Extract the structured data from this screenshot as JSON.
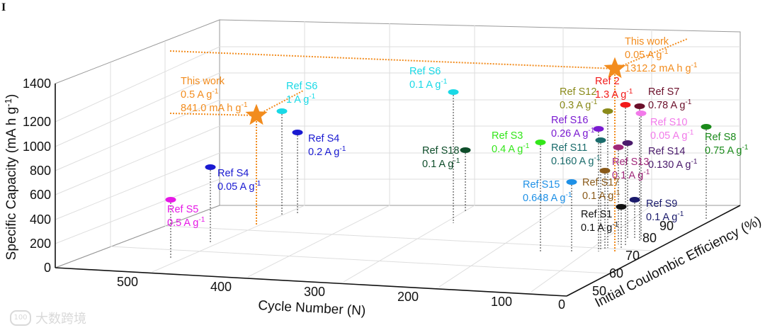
{
  "panel_label": "I",
  "watermark": {
    "logo": "100",
    "text": "大数跨境"
  },
  "chart_data": {
    "type": "scatter3d",
    "title": "",
    "xlabel": "Cycle Number (N)",
    "ylabel": "Initial Coulombic Efficiency (%)",
    "zlabel": "Specific Capacity (mA h g-1)",
    "xlim": [
      0,
      550
    ],
    "ylim": [
      50,
      90
    ],
    "zlim": [
      0,
      1400
    ],
    "x_ticks": [
      "500",
      "400",
      "300",
      "200",
      "100",
      "0"
    ],
    "y_ticks": [
      "50",
      "60",
      "70",
      "80",
      "90"
    ],
    "z_ticks": [
      "0",
      "200",
      "400",
      "600",
      "800",
      "1000",
      "1200",
      "1400"
    ],
    "grid": true,
    "points": [
      {
        "id": "this-work-0.5",
        "lines": [
          "This work",
          "0.5 A g-1",
          "841.0 mA h g-1"
        ],
        "color": "#F28C1E",
        "marker": "star"
      },
      {
        "id": "this-work-0.05",
        "lines": [
          "This work",
          "0.05 A g-1",
          "1312.2 mA h g-1"
        ],
        "color": "#F28C1E",
        "marker": "star"
      },
      {
        "id": "ref-s5",
        "lines": [
          "Ref S5",
          "0.5 A g-1"
        ],
        "color": "#E619E6",
        "marker": "ellipse"
      },
      {
        "id": "ref-s4-a",
        "lines": [
          "Ref S4",
          "0.05 A g-1"
        ],
        "color": "#1A1AD1",
        "marker": "ellipse"
      },
      {
        "id": "ref-s6-a",
        "lines": [
          "Ref S6",
          "1 A g-1"
        ],
        "color": "#19D9E6",
        "marker": "ellipse"
      },
      {
        "id": "ref-s4-b",
        "lines": [
          "Ref S4",
          "0.2 A g-1"
        ],
        "color": "#1A1AD1",
        "marker": "ellipse"
      },
      {
        "id": "ref-s6-b",
        "lines": [
          "Ref S6",
          "0.1 A g-1"
        ],
        "color": "#19D9E6",
        "marker": "ellipse"
      },
      {
        "id": "ref-s18",
        "lines": [
          "Ref S18",
          "0.1 A g-1"
        ],
        "color": "#0E4D2A",
        "marker": "ellipse"
      },
      {
        "id": "ref-s3",
        "lines": [
          "Ref S3",
          "0.4 A g-1"
        ],
        "color": "#33E61A",
        "marker": "ellipse"
      },
      {
        "id": "ref-s15",
        "lines": [
          "Ref S15",
          "0.648 A g-1"
        ],
        "color": "#1E90E6",
        "marker": "ellipse"
      },
      {
        "id": "ref-s12",
        "lines": [
          "Ref S12",
          "0.3 A g-1"
        ],
        "color": "#8A8A1A",
        "marker": "ellipse"
      },
      {
        "id": "ref-2",
        "lines": [
          "Ref 2",
          "1.3 A g-1"
        ],
        "color": "#F21A1A",
        "marker": "ellipse"
      },
      {
        "id": "ref-s7",
        "lines": [
          "Ref S7",
          "0.78 A g-1"
        ],
        "color": "#6B0F2A",
        "marker": "ellipse"
      },
      {
        "id": "ref-s16",
        "lines": [
          "Ref S16",
          "0.26 A g-1"
        ],
        "color": "#7A1AD1",
        "marker": "ellipse"
      },
      {
        "id": "ref-s10",
        "lines": [
          "Ref S10",
          "0.05 A g-1"
        ],
        "color": "#F27AEA",
        "marker": "ellipse"
      },
      {
        "id": "ref-s11",
        "lines": [
          "Ref S11",
          "0.160 A g-1"
        ],
        "color": "#1A6B6B",
        "marker": "ellipse"
      },
      {
        "id": "ref-s8",
        "lines": [
          "Ref S8",
          "0.75 A g-1"
        ],
        "color": "#1A8A1A",
        "marker": "ellipse"
      },
      {
        "id": "ref-s13",
        "lines": [
          "Ref S13",
          "0.1 A g-1"
        ],
        "color": "#A0287A",
        "marker": "ellipse"
      },
      {
        "id": "ref-s14",
        "lines": [
          "Ref S14",
          "0.130 A g-1"
        ],
        "color": "#4A1A6B",
        "marker": "ellipse"
      },
      {
        "id": "ref-s17",
        "lines": [
          "Ref S17",
          "0.1 A g-1"
        ],
        "color": "#8A5A1A",
        "marker": "ellipse"
      },
      {
        "id": "ref-s1",
        "lines": [
          "Ref S1",
          "0.1 A g-1"
        ],
        "color": "#111111",
        "marker": "ellipse"
      },
      {
        "id": "ref-s9",
        "lines": [
          "Ref S9",
          "0.1 A g-1"
        ],
        "color": "#1A1A6B",
        "marker": "ellipse"
      }
    ]
  }
}
